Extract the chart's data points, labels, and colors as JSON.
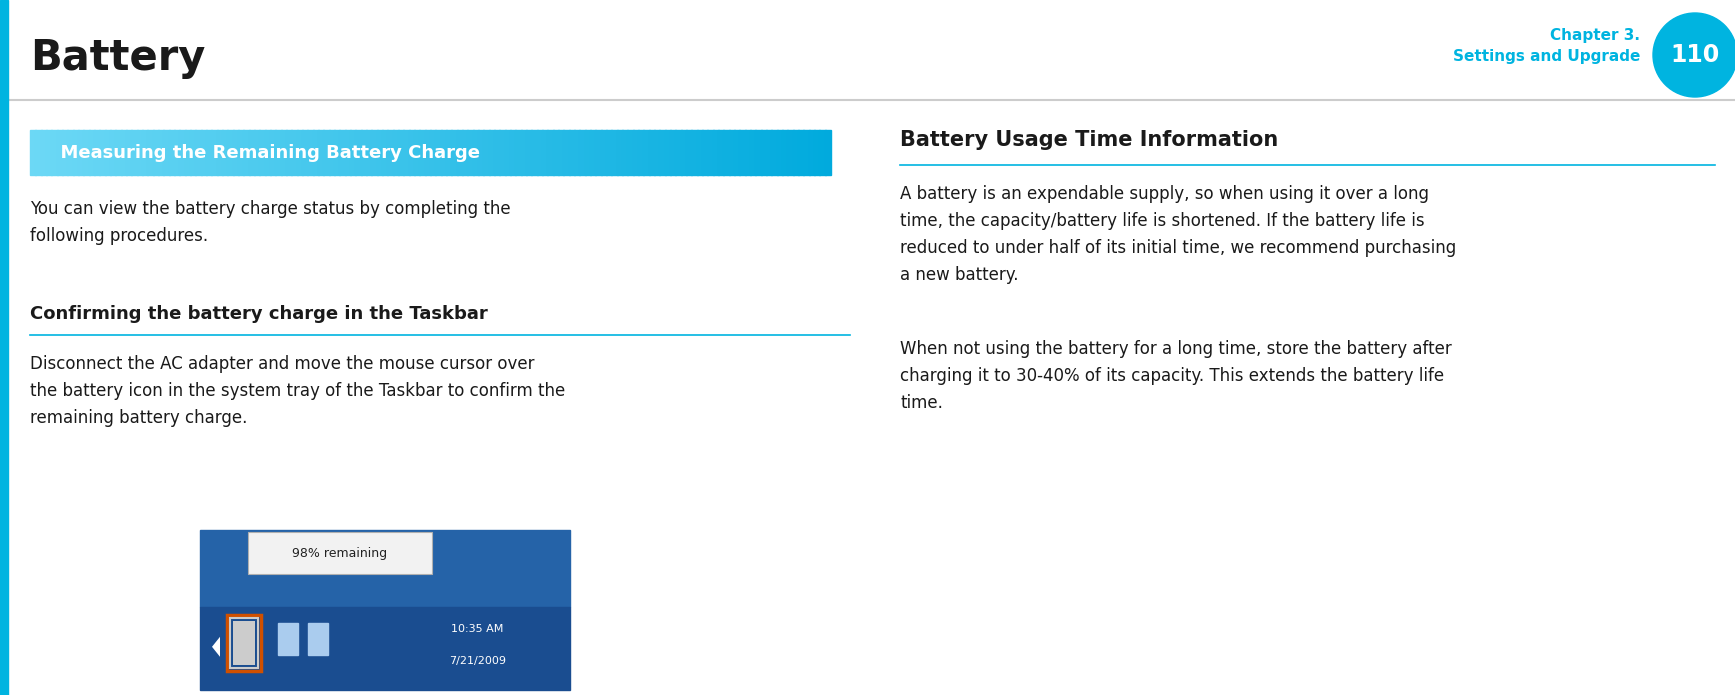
{
  "bg_color": "#ffffff",
  "title_text": "Battery",
  "title_fontsize": 30,
  "title_color": "#1a1a1a",
  "chapter_text": "Chapter 3.\nSettings and Upgrade",
  "chapter_color": "#00b4e0",
  "chapter_fontsize": 11,
  "page_num": "110",
  "page_circle_color": "#00b4e0",
  "page_num_color": "#ffffff",
  "page_num_fontsize": 17,
  "header_line_color": "#cccccc",
  "left_cyan_bar_color": "#00b4e0",
  "section1_banner_text": "  Measuring the Remaining Battery Charge",
  "section1_banner_bg_start": "#6cd8f5",
  "section1_banner_bg_end": "#00aadd",
  "section1_banner_text_color": "#ffffff",
  "section1_banner_fontsize": 13,
  "subsection_title": "Confirming the battery charge in the Taskbar",
  "subsection_title_fontsize": 13,
  "subsection_title_color": "#1a1a1a",
  "subsection_line_color": "#00b4e0",
  "body_fontsize": 12,
  "body_color": "#1a1a1a",
  "para1": "You can view the battery charge status by completing the\nfollowing procedures.",
  "para2": "Disconnect the AC adapter and move the mouse cursor over\nthe battery icon in the system tray of the Taskbar to confirm the\nremaining battery charge.",
  "section2_title": "Battery Usage Time Information",
  "section2_title_fontsize": 15,
  "section2_title_color": "#1a1a1a",
  "section2_line_color": "#00b4e0",
  "right_para1": "A battery is an expendable supply, so when using it over a long\ntime, the capacity/battery life is shortened. If the battery life is\nreduced to under half of its initial time, we recommend purchasing\na new battery.",
  "right_para2": "When not using the battery for a long time, store the battery after\ncharging it to 30-40% of its capacity. This extends the battery life\ntime."
}
